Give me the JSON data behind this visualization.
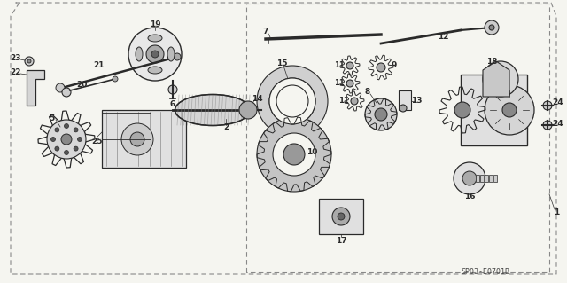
{
  "bg_color": "#f5f5f0",
  "diagram_color": "#2a2a2a",
  "border_color": "#888888",
  "ref_code": "SP03-E0701B",
  "fig_width": 6.4,
  "fig_height": 3.19,
  "dpi": 100
}
